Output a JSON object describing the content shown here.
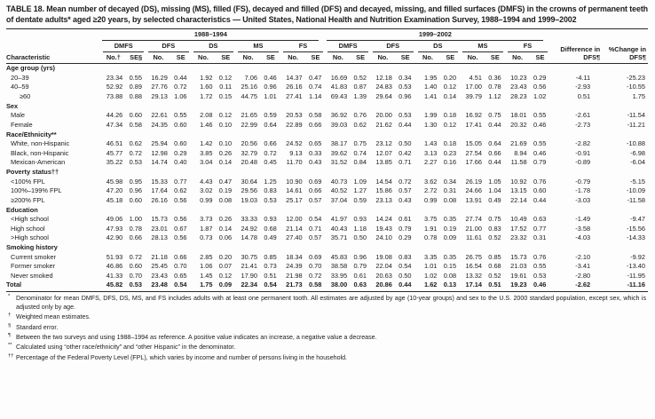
{
  "title": "TABLE 18. Mean number of decayed (DS), missing (MS), filled (FS), decayed and filled (DFS) and decayed, missing, and filled surfaces (DMFS) in the crowns of permanent teeth of dentate adults* aged ≥20 years, by selected characteristics — United States, National Health and Nutrition Examination Survey, 1988–1994 and 1999–2002",
  "table": {
    "characteristic_label": "Characteristic",
    "periods": [
      "1988–1994",
      "1999–2002"
    ],
    "measures": [
      "DMFS",
      "DFS",
      "DS",
      "MS",
      "FS"
    ],
    "subheaders": [
      "No.†",
      "SE§",
      "No.",
      "SE",
      "No.",
      "SE",
      "No.",
      "SE",
      "No.",
      "SE",
      "No.",
      "SE",
      "No.",
      "SE",
      "No.",
      "SE",
      "No.",
      "SE",
      "No.",
      "SE"
    ],
    "diff_label": "Difference in DFS¶",
    "pct_label": "%Change in DFS¶",
    "sections": [
      {
        "label": "Age group (yrs)",
        "rows": [
          {
            "label": "20–39",
            "indent": 1,
            "values": [
              "23.34",
              "0.55",
              "16.29",
              "0.44",
              "1.92",
              "0.12",
              "7.06",
              "0.46",
              "14.37",
              "0.47",
              "16.69",
              "0.52",
              "12.18",
              "0.34",
              "1.95",
              "0.20",
              "4.51",
              "0.36",
              "10.23",
              "0.29",
              "-4.11",
              "-25.23"
            ]
          },
          {
            "label": "40–59",
            "indent": 1,
            "values": [
              "52.92",
              "0.89",
              "27.76",
              "0.72",
              "1.60",
              "0.11",
              "25.16",
              "0.96",
              "26.16",
              "0.74",
              "41.83",
              "0.87",
              "24.83",
              "0.53",
              "1.40",
              "0.12",
              "17.00",
              "0.78",
              "23.43",
              "0.56",
              "-2.93",
              "-10.55"
            ]
          },
          {
            "label": "≥60",
            "indent": 2,
            "values": [
              "73.88",
              "0.88",
              "29.13",
              "1.06",
              "1.72",
              "0.15",
              "44.75",
              "1.01",
              "27.41",
              "1.14",
              "69.43",
              "1.39",
              "29.64",
              "0.96",
              "1.41",
              "0.14",
              "39.79",
              "1.12",
              "28.23",
              "1.02",
              "0.51",
              "1.75"
            ]
          }
        ]
      },
      {
        "label": "Sex",
        "rows": [
          {
            "label": "Male",
            "indent": 1,
            "values": [
              "44.26",
              "0.60",
              "22.61",
              "0.55",
              "2.08",
              "0.12",
              "21.65",
              "0.59",
              "20.53",
              "0.58",
              "36.92",
              "0.76",
              "20.00",
              "0.53",
              "1.99",
              "0.18",
              "16.92",
              "0.75",
              "18.01",
              "0.55",
              "-2.61",
              "-11.54"
            ]
          },
          {
            "label": "Female",
            "indent": 1,
            "values": [
              "47.34",
              "0.58",
              "24.35",
              "0.60",
              "1.46",
              "0.10",
              "22.99",
              "0.64",
              "22.89",
              "0.66",
              "39.03",
              "0.62",
              "21.62",
              "0.44",
              "1.30",
              "0.12",
              "17.41",
              "0.44",
              "20.32",
              "0.46",
              "-2.73",
              "-11.21"
            ]
          }
        ]
      },
      {
        "label": "Race/Ethnicity**",
        "rows": [
          {
            "label": "White, non-Hispanic",
            "indent": 1,
            "values": [
              "46.51",
              "0.62",
              "25.94",
              "0.60",
              "1.42",
              "0.10",
              "20.56",
              "0.66",
              "24.52",
              "0.65",
              "38.17",
              "0.75",
              "23.12",
              "0.50",
              "1.43",
              "0.18",
              "15.05",
              "0.64",
              "21.69",
              "0.55",
              "-2.82",
              "-10.88"
            ]
          },
          {
            "label": "Black, non-Hispanic",
            "indent": 1,
            "values": [
              "45.77",
              "0.72",
              "12.98",
              "0.29",
              "3.85",
              "0.26",
              "32.79",
              "0.72",
              "9.13",
              "0.33",
              "39.62",
              "0.74",
              "12.07",
              "0.42",
              "3.13",
              "0.23",
              "27.54",
              "0.66",
              "8.94",
              "0.46",
              "-0.91",
              "-6.98"
            ]
          },
          {
            "label": "Mexican-American",
            "indent": 1,
            "values": [
              "35.22",
              "0.53",
              "14.74",
              "0.40",
              "3.04",
              "0.14",
              "20.48",
              "0.45",
              "11.70",
              "0.43",
              "31.52",
              "0.84",
              "13.85",
              "0.71",
              "2.27",
              "0.16",
              "17.66",
              "0.44",
              "11.58",
              "0.79",
              "-0.89",
              "-6.04"
            ]
          }
        ]
      },
      {
        "label": "Poverty status††",
        "rows": [
          {
            "label": "<100% FPL",
            "indent": 1,
            "values": [
              "45.98",
              "0.95",
              "15.33",
              "0.77",
              "4.43",
              "0.47",
              "30.64",
              "1.25",
              "10.90",
              "0.69",
              "40.73",
              "1.09",
              "14.54",
              "0.72",
              "3.62",
              "0.34",
              "26.19",
              "1.05",
              "10.92",
              "0.76",
              "-0.79",
              "-5.15"
            ]
          },
          {
            "label": "100%–199% FPL",
            "indent": 1,
            "values": [
              "47.20",
              "0.96",
              "17.64",
              "0.62",
              "3.02",
              "0.19",
              "29.56",
              "0.83",
              "14.61",
              "0.66",
              "40.52",
              "1.27",
              "15.86",
              "0.57",
              "2.72",
              "0.31",
              "24.66",
              "1.04",
              "13.15",
              "0.60",
              "-1.78",
              "-10.09"
            ]
          },
          {
            "label": "≥200% FPL",
            "indent": 1,
            "values": [
              "45.18",
              "0.60",
              "26.16",
              "0.56",
              "0.99",
              "0.08",
              "19.03",
              "0.53",
              "25.17",
              "0.57",
              "37.04",
              "0.59",
              "23.13",
              "0.43",
              "0.99",
              "0.08",
              "13.91",
              "0.49",
              "22.14",
              "0.44",
              "-3.03",
              "-11.58"
            ]
          }
        ]
      },
      {
        "label": "Education",
        "rows": [
          {
            "label": "<High school",
            "indent": 1,
            "values": [
              "49.06",
              "1.00",
              "15.73",
              "0.56",
              "3.73",
              "0.26",
              "33.33",
              "0.93",
              "12.00",
              "0.54",
              "41.97",
              "0.93",
              "14.24",
              "0.61",
              "3.75",
              "0.35",
              "27.74",
              "0.75",
              "10.49",
              "0.63",
              "-1.49",
              "-9.47"
            ]
          },
          {
            "label": "High school",
            "indent": 1,
            "values": [
              "47.93",
              "0.78",
              "23.01",
              "0.67",
              "1.87",
              "0.14",
              "24.92",
              "0.68",
              "21.14",
              "0.71",
              "40.43",
              "1.18",
              "19.43",
              "0.79",
              "1.91",
              "0.19",
              "21.00",
              "0.83",
              "17.52",
              "0.77",
              "-3.58",
              "-15.56"
            ]
          },
          {
            "label": ">High school",
            "indent": 1,
            "values": [
              "42.90",
              "0.66",
              "28.13",
              "0.56",
              "0.73",
              "0.06",
              "14.78",
              "0.49",
              "27.40",
              "0.57",
              "35.71",
              "0.50",
              "24.10",
              "0.29",
              "0.78",
              "0.09",
              "11.61",
              "0.52",
              "23.32",
              "0.31",
              "-4.03",
              "-14.33"
            ]
          }
        ]
      },
      {
        "label": "Smoking history",
        "rows": [
          {
            "label": "Current smoker",
            "indent": 1,
            "values": [
              "51.93",
              "0.72",
              "21.18",
              "0.66",
              "2.85",
              "0.20",
              "30.75",
              "0.85",
              "18.34",
              "0.69",
              "45.83",
              "0.96",
              "19.08",
              "0.83",
              "3.35",
              "0.35",
              "26.75",
              "0.85",
              "15.73",
              "0.76",
              "-2.10",
              "-9.92"
            ]
          },
          {
            "label": "Former smoker",
            "indent": 1,
            "values": [
              "46.86",
              "0.60",
              "25.45",
              "0.70",
              "1.06",
              "0.07",
              "21.41",
              "0.73",
              "24.39",
              "0.70",
              "38.58",
              "0.79",
              "22.04",
              "0.54",
              "1.01",
              "0.15",
              "16.54",
              "0.68",
              "21.03",
              "0.55",
              "-3.41",
              "-13.40"
            ]
          },
          {
            "label": "Never smoked",
            "indent": 1,
            "values": [
              "41.33",
              "0.70",
              "23.43",
              "0.65",
              "1.45",
              "0.12",
              "17.90",
              "0.51",
              "21.98",
              "0.72",
              "33.95",
              "0.61",
              "20.63",
              "0.50",
              "1.02",
              "0.08",
              "13.32",
              "0.52",
              "19.61",
              "0.53",
              "-2.80",
              "-11.95"
            ]
          }
        ]
      }
    ],
    "total": {
      "label": "Total",
      "values": [
        "45.82",
        "0.53",
        "23.48",
        "0.54",
        "1.75",
        "0.09",
        "22.34",
        "0.54",
        "21.73",
        "0.58",
        "38.00",
        "0.63",
        "20.86",
        "0.44",
        "1.62",
        "0.13",
        "17.14",
        "0.51",
        "19.23",
        "0.46",
        "-2.62",
        "-11.16"
      ]
    }
  },
  "footnotes": [
    {
      "marker": "*",
      "text": "Denominator for mean DMFS, DFS, DS, MS, and FS includes adults with at least one permanent tooth.  All estimates are adjusted by age (10-year groups) and sex to the U.S. 2000 standard population, except sex, which is adjusted only by age."
    },
    {
      "marker": "†",
      "text": "Weighted mean estimates."
    },
    {
      "marker": "§",
      "text": "Standard error."
    },
    {
      "marker": "¶",
      "text": "Between the two surveys and using 1988–1994 as reference. A positive value indicates an increase, a negative value a decrease."
    },
    {
      "marker": "**",
      "text": "Calculated using “other race/ethnicity” and “other Hispanic” in the denominator."
    },
    {
      "marker": "††",
      "text": "Percentage of the Federal Poverty Level (FPL), which varies by income and number of persons living in the household."
    }
  ]
}
